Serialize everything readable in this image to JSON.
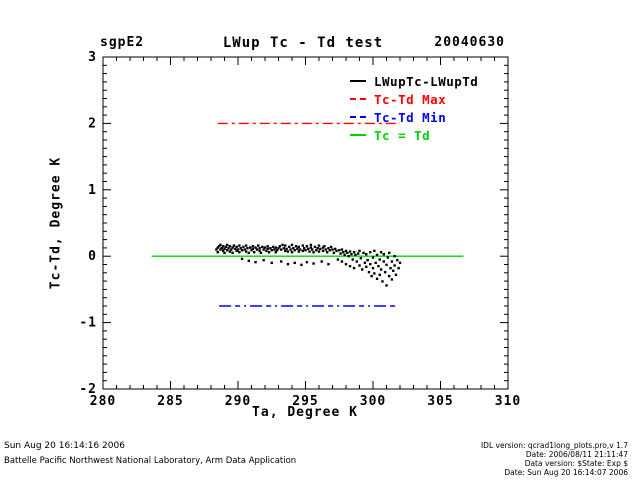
{
  "header": {
    "site": "sgpE2",
    "title": "LWup Tc - Td test",
    "date": "20040630"
  },
  "footer": {
    "generated_time": "Sun Aug 20 16:14:16 2006",
    "organization": "Battelle Pacific Northwest National Laboratory, Arm Data Application",
    "right_lines": [
      "IDL version: qcrad1long_plots.pro,v 1.7",
      "Date: 2006/08/11 21:11:47",
      "Data version: $State: Exp $",
      "Date: Sun Aug 20 16:14:07 2006"
    ]
  },
  "chart_data": {
    "type": "scatter",
    "title": "LWup Tc - Td test",
    "xlabel": "Ta, Degree K",
    "ylabel": "Tc-Td, Degree K",
    "xlim": [
      280,
      310
    ],
    "ylim": [
      -2,
      3
    ],
    "x_major_step": 5,
    "x_minor_step": 1,
    "y_major_step": 1,
    "y_minor_step": 0.125,
    "grid": false,
    "legend_position": "top-right-inside",
    "colors": {
      "scatter": "#000000",
      "max_line": "#ff0000",
      "min_line": "#0000ff",
      "equal_line": "#00d400"
    },
    "legend": [
      {
        "label": "LWupTc-LWupTd",
        "color": "#000000",
        "style": "solid"
      },
      {
        "label": "Tc-Td Max",
        "color": "#ff0000",
        "style": "dashed"
      },
      {
        "label": "Tc-Td Min",
        "color": "#0000ff",
        "style": "dashed"
      },
      {
        "label": "Tc = Td",
        "color": "#00d400",
        "style": "solid"
      }
    ],
    "lines": [
      {
        "name": "tc-td-max",
        "y": 2.0,
        "x_start": 288.5,
        "x_end": 302.0,
        "color": "#ff0000",
        "dash": "10 4 3 4"
      },
      {
        "name": "tc-td-min",
        "y": -0.75,
        "x_start": 288.6,
        "x_end": 301.9,
        "color": "#0000ff",
        "dash": "12 4 5 4 2 4"
      },
      {
        "name": "tc-equals-td",
        "y": 0.0,
        "x_start": 283.6,
        "x_end": 306.7,
        "color": "#00d400",
        "dash": ""
      }
    ],
    "series_name": "LWupTc-LWupTd",
    "points": [
      [
        288.4,
        0.1
      ],
      [
        288.5,
        0.13
      ],
      [
        288.5,
        0.06
      ],
      [
        288.6,
        0.15
      ],
      [
        288.7,
        0.1
      ],
      [
        288.7,
        0.17
      ],
      [
        288.8,
        0.12
      ],
      [
        288.9,
        0.08
      ],
      [
        288.9,
        0.15
      ],
      [
        289.0,
        0.11
      ],
      [
        289.0,
        0.05
      ],
      [
        289.1,
        0.14
      ],
      [
        289.2,
        0.09
      ],
      [
        289.2,
        0.17
      ],
      [
        289.3,
        0.12
      ],
      [
        289.4,
        0.07
      ],
      [
        289.4,
        0.15
      ],
      [
        289.5,
        0.1
      ],
      [
        289.6,
        0.13
      ],
      [
        289.6,
        0.05
      ],
      [
        289.7,
        0.16
      ],
      [
        289.8,
        0.11
      ],
      [
        289.9,
        0.08
      ],
      [
        289.9,
        0.14
      ],
      [
        290.0,
        0.1
      ],
      [
        290.1,
        0.16
      ],
      [
        290.1,
        0.06
      ],
      [
        290.2,
        0.12
      ],
      [
        290.3,
        0.09
      ],
      [
        290.3,
        -0.04
      ],
      [
        290.4,
        0.14
      ],
      [
        290.5,
        0.1
      ],
      [
        290.6,
        0.16
      ],
      [
        290.6,
        0.07
      ],
      [
        290.7,
        0.12
      ],
      [
        290.8,
        0.05
      ],
      [
        290.8,
        -0.07
      ],
      [
        290.9,
        0.13
      ],
      [
        291.0,
        0.09
      ],
      [
        291.1,
        0.15
      ],
      [
        291.1,
        0.11
      ],
      [
        291.2,
        0.06
      ],
      [
        291.3,
        0.13
      ],
      [
        291.3,
        -0.09
      ],
      [
        291.4,
        0.1
      ],
      [
        291.5,
        0.16
      ],
      [
        291.6,
        0.08
      ],
      [
        291.6,
        0.12
      ],
      [
        291.7,
        0.05
      ],
      [
        291.8,
        0.14
      ],
      [
        291.9,
        0.1
      ],
      [
        291.9,
        -0.06
      ],
      [
        292.0,
        0.13
      ],
      [
        292.1,
        0.08
      ],
      [
        292.2,
        0.15
      ],
      [
        292.2,
        0.11
      ],
      [
        292.3,
        0.06
      ],
      [
        292.4,
        0.12
      ],
      [
        292.5,
        0.09
      ],
      [
        292.5,
        -0.1
      ],
      [
        292.6,
        0.14
      ],
      [
        292.7,
        0.1
      ],
      [
        292.8,
        0.06
      ],
      [
        292.8,
        0.13
      ],
      [
        292.9,
        0.09
      ],
      [
        293.0,
        0.12
      ],
      [
        293.1,
        0.15
      ],
      [
        293.2,
        0.1
      ],
      [
        293.2,
        -0.08
      ],
      [
        293.3,
        0.17
      ],
      [
        293.4,
        0.12
      ],
      [
        293.5,
        0.08
      ],
      [
        293.5,
        0.16
      ],
      [
        293.6,
        0.11
      ],
      [
        293.7,
        0.07
      ],
      [
        293.7,
        -0.12
      ],
      [
        293.8,
        0.14
      ],
      [
        293.9,
        0.1
      ],
      [
        294.0,
        0.17
      ],
      [
        294.0,
        0.06
      ],
      [
        294.1,
        0.12
      ],
      [
        294.2,
        0.09
      ],
      [
        294.2,
        -0.1
      ],
      [
        294.3,
        0.15
      ],
      [
        294.4,
        0.11
      ],
      [
        294.5,
        0.07
      ],
      [
        294.5,
        0.14
      ],
      [
        294.6,
        0.1
      ],
      [
        294.7,
        -0.13
      ],
      [
        294.8,
        0.16
      ],
      [
        294.8,
        0.08
      ],
      [
        294.9,
        0.12
      ],
      [
        295.0,
        0.09
      ],
      [
        295.1,
        0.15
      ],
      [
        295.1,
        -0.09
      ],
      [
        295.2,
        0.11
      ],
      [
        295.3,
        0.07
      ],
      [
        295.4,
        0.13
      ],
      [
        295.4,
        0.17
      ],
      [
        295.5,
        0.1
      ],
      [
        295.6,
        0.06
      ],
      [
        295.6,
        -0.11
      ],
      [
        295.7,
        0.14
      ],
      [
        295.8,
        0.09
      ],
      [
        295.9,
        0.12
      ],
      [
        296.0,
        0.16
      ],
      [
        296.0,
        0.07
      ],
      [
        296.1,
        0.11
      ],
      [
        296.2,
        -0.08
      ],
      [
        296.3,
        0.13
      ],
      [
        296.3,
        0.08
      ],
      [
        296.4,
        0.15
      ],
      [
        296.5,
        0.1
      ],
      [
        296.6,
        0.06
      ],
      [
        296.7,
        0.12
      ],
      [
        296.7,
        -0.12
      ],
      [
        296.8,
        0.09
      ],
      [
        296.9,
        0.14
      ],
      [
        297.0,
        0.1
      ],
      [
        297.1,
        0.05
      ],
      [
        297.2,
        0.11
      ],
      [
        297.3,
        0.08
      ],
      [
        297.4,
        -0.05
      ],
      [
        297.5,
        0.09
      ],
      [
        297.6,
        0.04
      ],
      [
        297.7,
        0.1
      ],
      [
        297.7,
        -0.08
      ],
      [
        297.8,
        0.06
      ],
      [
        297.9,
        0.02
      ],
      [
        298.0,
        0.08
      ],
      [
        298.0,
        -0.12
      ],
      [
        298.1,
        0.05
      ],
      [
        298.2,
        0.0
      ],
      [
        298.3,
        0.07
      ],
      [
        298.3,
        -0.15
      ],
      [
        298.4,
        0.03
      ],
      [
        298.5,
        -0.05
      ],
      [
        298.6,
        0.06
      ],
      [
        298.6,
        -0.18
      ],
      [
        298.7,
        0.02
      ],
      [
        298.8,
        -0.08
      ],
      [
        298.9,
        0.04
      ],
      [
        299.0,
        -0.14
      ],
      [
        299.0,
        0.08
      ],
      [
        299.1,
        -0.03
      ],
      [
        299.2,
        -0.2
      ],
      [
        299.3,
        0.05
      ],
      [
        299.4,
        -0.1
      ],
      [
        299.5,
        0.03
      ],
      [
        299.5,
        -0.16
      ],
      [
        299.6,
        -0.06
      ],
      [
        299.7,
        -0.24
      ],
      [
        299.8,
        0.06
      ],
      [
        299.8,
        -0.12
      ],
      [
        299.9,
        -0.3
      ],
      [
        300.0,
        -0.02
      ],
      [
        300.0,
        -0.18
      ],
      [
        300.1,
        0.08
      ],
      [
        300.1,
        -0.26
      ],
      [
        300.2,
        -0.1
      ],
      [
        300.3,
        -0.34
      ],
      [
        300.3,
        0.02
      ],
      [
        300.4,
        -0.15
      ],
      [
        300.5,
        -0.05
      ],
      [
        300.5,
        -0.28
      ],
      [
        300.6,
        0.06
      ],
      [
        300.6,
        -0.2
      ],
      [
        300.7,
        -0.38
      ],
      [
        300.8,
        -0.08
      ],
      [
        300.8,
        0.03
      ],
      [
        300.9,
        -0.24
      ],
      [
        301.0,
        -0.13
      ],
      [
        301.0,
        -0.44
      ],
      [
        301.1,
        -0.02
      ],
      [
        301.2,
        -0.3
      ],
      [
        301.2,
        0.05
      ],
      [
        301.3,
        -0.18
      ],
      [
        301.4,
        -0.08
      ],
      [
        301.4,
        -0.35
      ],
      [
        301.5,
        -0.22
      ],
      [
        301.6,
        0.0
      ],
      [
        301.6,
        -0.14
      ],
      [
        301.7,
        -0.28
      ],
      [
        301.8,
        -0.06
      ],
      [
        301.9,
        -0.18
      ],
      [
        302.0,
        -0.1
      ]
    ]
  }
}
